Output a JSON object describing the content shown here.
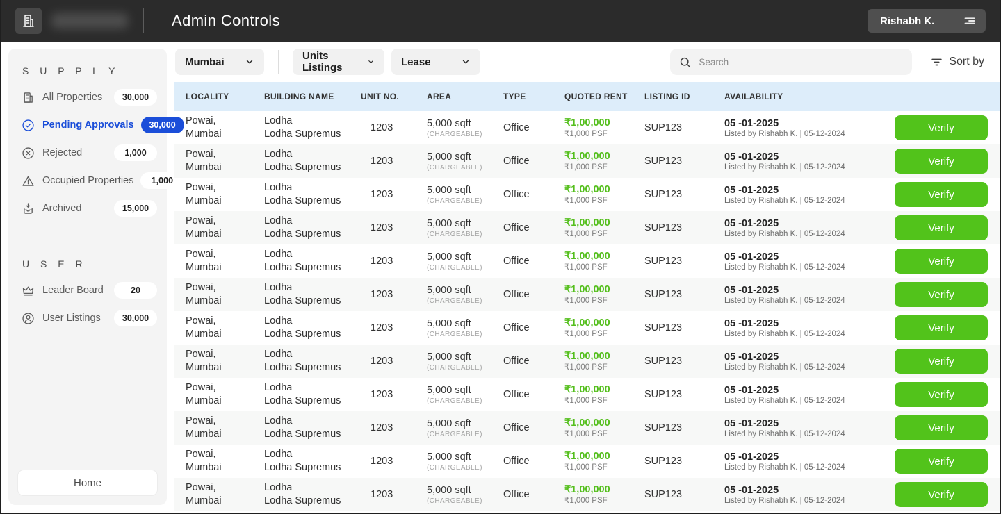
{
  "header": {
    "title": "Admin Controls",
    "profile_name": "Rishabh K."
  },
  "sidebar": {
    "sections": [
      {
        "title": "S U P P L Y",
        "items": [
          {
            "label": "All Properties",
            "count": "30,000",
            "icon": "buildings-icon",
            "active": false
          },
          {
            "label": "Pending Approvals",
            "count": "30,000",
            "icon": "check-circle-icon",
            "active": true
          },
          {
            "label": "Rejected",
            "count": "1,000",
            "icon": "x-circle-icon",
            "active": false
          },
          {
            "label": "Occupied Properties",
            "count": "1,000",
            "icon": "warning-triangle-icon",
            "active": false
          },
          {
            "label": "Archived",
            "count": "15,000",
            "icon": "archive-icon",
            "active": false
          }
        ]
      },
      {
        "title": "U S E R",
        "items": [
          {
            "label": "Leader Board",
            "count": "20",
            "icon": "crown-icon",
            "active": false
          },
          {
            "label": "User Listings",
            "count": "30,000",
            "icon": "user-circle-icon",
            "active": false
          }
        ]
      }
    ],
    "home_label": "Home"
  },
  "filters": {
    "city": "Mumbai",
    "listing_type": "Units Listings",
    "deal_type": "Lease",
    "search_placeholder": "Search",
    "sort_label": "Sort by"
  },
  "table": {
    "columns": [
      "LOCALITY",
      "BUILDING NAME",
      "UNIT NO.",
      "AREA",
      "TYPE",
      "QUOTED RENT",
      "LISTING ID",
      "AVAILABILITY"
    ],
    "action_label": "Verify",
    "rows": [
      {
        "locality_line1": "Powai,",
        "locality_line2": "Mumbai",
        "building_line1": "Lodha",
        "building_line2": "Lodha Supremus",
        "unit_no": "1203",
        "area": "5,000 sqft",
        "area_note": "(CHARGEABLE)",
        "type": "Office",
        "rent": "₹1,00,000",
        "rent_psf": "₹1,000 PSF",
        "listing_id": "SUP123",
        "available_from": "05 -01-2025",
        "listed_by": "Listed by Rishabh K.  |  05-12-2024"
      },
      {
        "locality_line1": "Powai,",
        "locality_line2": "Mumbai",
        "building_line1": "Lodha",
        "building_line2": "Lodha Supremus",
        "unit_no": "1203",
        "area": "5,000 sqft",
        "area_note": "(CHARGEABLE)",
        "type": "Office",
        "rent": "₹1,00,000",
        "rent_psf": "₹1,000 PSF",
        "listing_id": "SUP123",
        "available_from": "05 -01-2025",
        "listed_by": "Listed by Rishabh K.  |  05-12-2024"
      },
      {
        "locality_line1": "Powai,",
        "locality_line2": "Mumbai",
        "building_line1": "Lodha",
        "building_line2": "Lodha Supremus",
        "unit_no": "1203",
        "area": "5,000 sqft",
        "area_note": "(CHARGEABLE)",
        "type": "Office",
        "rent": "₹1,00,000",
        "rent_psf": "₹1,000 PSF",
        "listing_id": "SUP123",
        "available_from": "05 -01-2025",
        "listed_by": "Listed by Rishabh K.  |  05-12-2024"
      },
      {
        "locality_line1": "Powai,",
        "locality_line2": "Mumbai",
        "building_line1": "Lodha",
        "building_line2": "Lodha Supremus",
        "unit_no": "1203",
        "area": "5,000 sqft",
        "area_note": "(CHARGEABLE)",
        "type": "Office",
        "rent": "₹1,00,000",
        "rent_psf": "₹1,000 PSF",
        "listing_id": "SUP123",
        "available_from": "05 -01-2025",
        "listed_by": "Listed by Rishabh K.  |  05-12-2024"
      },
      {
        "locality_line1": "Powai,",
        "locality_line2": "Mumbai",
        "building_line1": "Lodha",
        "building_line2": "Lodha Supremus",
        "unit_no": "1203",
        "area": "5,000 sqft",
        "area_note": "(CHARGEABLE)",
        "type": "Office",
        "rent": "₹1,00,000",
        "rent_psf": "₹1,000 PSF",
        "listing_id": "SUP123",
        "available_from": "05 -01-2025",
        "listed_by": "Listed by Rishabh K.  |  05-12-2024"
      },
      {
        "locality_line1": "Powai,",
        "locality_line2": "Mumbai",
        "building_line1": "Lodha",
        "building_line2": "Lodha Supremus",
        "unit_no": "1203",
        "area": "5,000 sqft",
        "area_note": "(CHARGEABLE)",
        "type": "Office",
        "rent": "₹1,00,000",
        "rent_psf": "₹1,000 PSF",
        "listing_id": "SUP123",
        "available_from": "05 -01-2025",
        "listed_by": "Listed by Rishabh K.  |  05-12-2024"
      },
      {
        "locality_line1": "Powai,",
        "locality_line2": "Mumbai",
        "building_line1": "Lodha",
        "building_line2": "Lodha Supremus",
        "unit_no": "1203",
        "area": "5,000 sqft",
        "area_note": "(CHARGEABLE)",
        "type": "Office",
        "rent": "₹1,00,000",
        "rent_psf": "₹1,000 PSF",
        "listing_id": "SUP123",
        "available_from": "05 -01-2025",
        "listed_by": "Listed by Rishabh K.  |  05-12-2024"
      },
      {
        "locality_line1": "Powai,",
        "locality_line2": "Mumbai",
        "building_line1": "Lodha",
        "building_line2": "Lodha Supremus",
        "unit_no": "1203",
        "area": "5,000 sqft",
        "area_note": "(CHARGEABLE)",
        "type": "Office",
        "rent": "₹1,00,000",
        "rent_psf": "₹1,000 PSF",
        "listing_id": "SUP123",
        "available_from": "05 -01-2025",
        "listed_by": "Listed by Rishabh K.  |  05-12-2024"
      },
      {
        "locality_line1": "Powai,",
        "locality_line2": "Mumbai",
        "building_line1": "Lodha",
        "building_line2": "Lodha Supremus",
        "unit_no": "1203",
        "area": "5,000 sqft",
        "area_note": "(CHARGEABLE)",
        "type": "Office",
        "rent": "₹1,00,000",
        "rent_psf": "₹1,000 PSF",
        "listing_id": "SUP123",
        "available_from": "05 -01-2025",
        "listed_by": "Listed by Rishabh K.  |  05-12-2024"
      },
      {
        "locality_line1": "Powai,",
        "locality_line2": "Mumbai",
        "building_line1": "Lodha",
        "building_line2": "Lodha Supremus",
        "unit_no": "1203",
        "area": "5,000 sqft",
        "area_note": "(CHARGEABLE)",
        "type": "Office",
        "rent": "₹1,00,000",
        "rent_psf": "₹1,000 PSF",
        "listing_id": "SUP123",
        "available_from": "05 -01-2025",
        "listed_by": "Listed by Rishabh K.  |  05-12-2024"
      },
      {
        "locality_line1": "Powai,",
        "locality_line2": "Mumbai",
        "building_line1": "Lodha",
        "building_line2": "Lodha Supremus",
        "unit_no": "1203",
        "area": "5,000 sqft",
        "area_note": "(CHARGEABLE)",
        "type": "Office",
        "rent": "₹1,00,000",
        "rent_psf": "₹1,000 PSF",
        "listing_id": "SUP123",
        "available_from": "05 -01-2025",
        "listed_by": "Listed by Rishabh K.  |  05-12-2024"
      },
      {
        "locality_line1": "Powai,",
        "locality_line2": "Mumbai",
        "building_line1": "Lodha",
        "building_line2": "Lodha Supremus",
        "unit_no": "1203",
        "area": "5,000 sqft",
        "area_note": "(CHARGEABLE)",
        "type": "Office",
        "rent": "₹1,00,000",
        "rent_psf": "₹1,000 PSF",
        "listing_id": "SUP123",
        "available_from": "05 -01-2025",
        "listed_by": "Listed by Rishabh K.  |  05-12-2024"
      }
    ]
  },
  "colors": {
    "accent_blue": "#1b4ed9",
    "action_green": "#52c31b",
    "rent_green": "#55bf1d",
    "topbar_bg": "#2b2b2b",
    "table_header_bg": "#ddedfa"
  }
}
